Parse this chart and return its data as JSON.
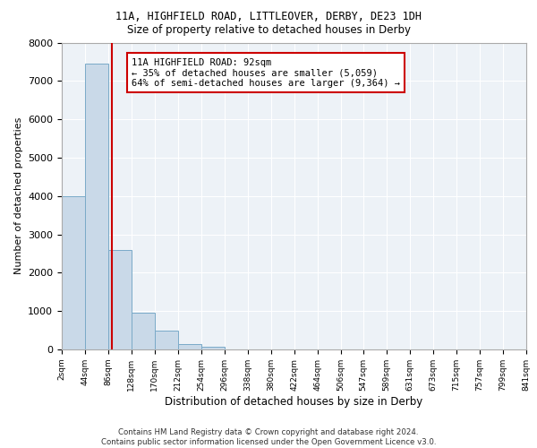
{
  "title1": "11A, HIGHFIELD ROAD, LITTLEOVER, DERBY, DE23 1DH",
  "title2": "Size of property relative to detached houses in Derby",
  "xlabel": "Distribution of detached houses by size in Derby",
  "ylabel": "Number of detached properties",
  "bin_edges": [
    2,
    44,
    86,
    128,
    170,
    212,
    254,
    296,
    338,
    380,
    422,
    464,
    506,
    547,
    589,
    631,
    673,
    715,
    757,
    799,
    841
  ],
  "bar_heights": [
    4000,
    7450,
    2600,
    950,
    500,
    130,
    60,
    0,
    0,
    0,
    0,
    0,
    0,
    0,
    0,
    0,
    0,
    0,
    0,
    0
  ],
  "bar_color": "#c9d9e8",
  "bar_edge_color": "#7aaac8",
  "property_size": 92,
  "vline_color": "#cc0000",
  "annotation_line1": "11A HIGHFIELD ROAD: 92sqm",
  "annotation_line2": "← 35% of detached houses are smaller (5,059)",
  "annotation_line3": "64% of semi-detached houses are larger (9,364) →",
  "annotation_box_color": "#ffffff",
  "annotation_box_edge_color": "#cc0000",
  "ylim": [
    0,
    8000
  ],
  "yticks": [
    0,
    1000,
    2000,
    3000,
    4000,
    5000,
    6000,
    7000,
    8000
  ],
  "tick_labels": [
    "2sqm",
    "44sqm",
    "86sqm",
    "128sqm",
    "170sqm",
    "212sqm",
    "254sqm",
    "296sqm",
    "338sqm",
    "380sqm",
    "422sqm",
    "464sqm",
    "506sqm",
    "547sqm",
    "589sqm",
    "631sqm",
    "673sqm",
    "715sqm",
    "757sqm",
    "799sqm",
    "841sqm"
  ],
  "footer_text": "Contains HM Land Registry data © Crown copyright and database right 2024.\nContains public sector information licensed under the Open Government Licence v3.0.",
  "background_color": "#edf2f7",
  "grid_color": "#ffffff"
}
